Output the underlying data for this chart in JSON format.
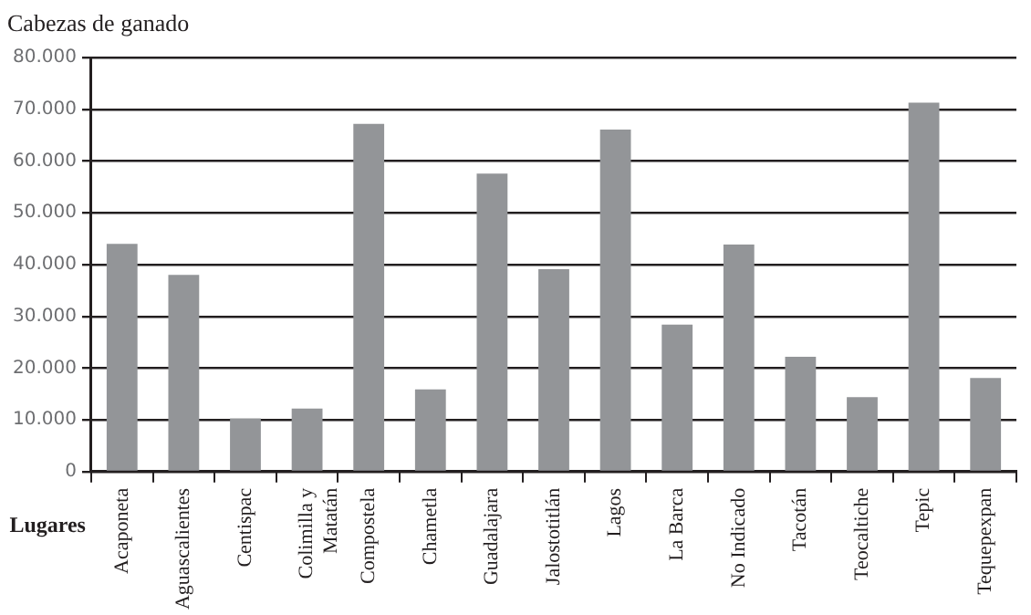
{
  "chart_data": {
    "type": "bar",
    "title": "Cabezas de ganado",
    "xlabel": "Lugares",
    "categories": [
      "Acaponeta",
      "Aguascalientes",
      "Centispac",
      "Colimilla y Matatán",
      "Compostela",
      "Chametla",
      "Guadalajara",
      "Jalostotitlán",
      "Lagos",
      "La Barca",
      "No Indicado",
      "Tacotán",
      "Teocaltiche",
      "Tepic",
      "Tequepexpan"
    ],
    "values": [
      44000,
      38000,
      10300,
      12200,
      67200,
      15900,
      57600,
      39100,
      66100,
      28400,
      43900,
      22200,
      14400,
      71300,
      18100
    ],
    "color": "#939598",
    "ylim": [
      0,
      80000
    ],
    "yticks": [
      0,
      {
        "value": 10000,
        "label": "10.000"
      },
      {
        "value": 20000,
        "label": "20.000"
      },
      {
        "value": 30000,
        "label": "30.000"
      },
      {
        "value": 40000,
        "label": "40.000"
      },
      {
        "value": 50000,
        "label": "50.000"
      },
      {
        "value": 60000,
        "label": "60.000"
      },
      {
        "value": 70000,
        "label": "70.000"
      },
      {
        "value": 80000,
        "label": "80.000"
      }
    ],
    "grid": "y",
    "legend": false
  }
}
